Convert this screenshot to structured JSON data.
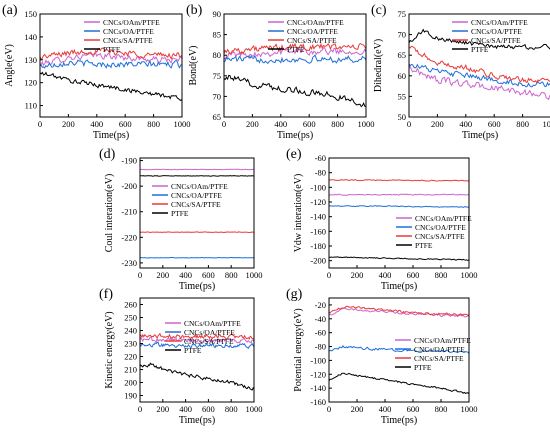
{
  "figure": {
    "panels": [
      {
        "letter": "(a)",
        "xlabel": "Time(ps)",
        "ylabel": "Angle(eV)"
      },
      {
        "letter": "(b)",
        "xlabel": "Time(ps)",
        "ylabel": "Bond(eV)"
      },
      {
        "letter": "(c)",
        "xlabel": "Time(ps)",
        "ylabel": "Dihedral(eV)"
      },
      {
        "letter": "(d)",
        "xlabel": "Time(ps)",
        "ylabel": "Coul interation(eV)"
      },
      {
        "letter": "(e)",
        "xlabel": "Time(ps)",
        "ylabel": "Vdw interation(eV)"
      },
      {
        "letter": "(f)",
        "xlabel": "Time(ps)",
        "ylabel": "Kinetic energy(eV)"
      },
      {
        "letter": "(g)",
        "xlabel": "Time(ps)",
        "ylabel": "Potential energy(eV)"
      }
    ]
  },
  "chart_data": [
    {
      "type": "line",
      "xlabel": "Time(ps)",
      "ylabel": "Angle(eV)",
      "xlim": [
        0,
        1000
      ],
      "ylim": [
        105,
        150
      ],
      "xticks": [
        0,
        200,
        400,
        600,
        800,
        1000
      ],
      "yticks": [
        110,
        120,
        130,
        140,
        150
      ],
      "legend_position": "top-right",
      "series": [
        {
          "name": "CNCs/OAm/PTFE",
          "color": "#cc66cc",
          "base": 130,
          "noise": 2.0,
          "values": [
            [
              0,
              128
            ],
            [
              200,
              131
            ],
            [
              400,
              132
            ],
            [
              600,
              131
            ],
            [
              800,
              130
            ],
            [
              1000,
              130
            ]
          ]
        },
        {
          "name": "CNCs/OA/PTFE",
          "color": "#1e6fd9",
          "base": 128,
          "noise": 2.0,
          "values": [
            [
              0,
              127
            ],
            [
              200,
              129
            ],
            [
              400,
              128
            ],
            [
              600,
              128
            ],
            [
              800,
              128
            ],
            [
              1000,
              128
            ]
          ]
        },
        {
          "name": "CNCs/SA/PTFE",
          "color": "#e83a3a",
          "base": 133,
          "noise": 2.0,
          "values": [
            [
              0,
              131
            ],
            [
              200,
              133
            ],
            [
              400,
              134
            ],
            [
              600,
              133
            ],
            [
              800,
              132
            ],
            [
              1000,
              132
            ]
          ]
        },
        {
          "name": "PTFE",
          "color": "#000000",
          "base": 120,
          "noise": 1.5,
          "values": [
            [
              0,
              124
            ],
            [
              100,
              123
            ],
            [
              200,
              121
            ],
            [
              400,
              119
            ],
            [
              600,
              117
            ],
            [
              800,
              115
            ],
            [
              1000,
              113
            ]
          ]
        }
      ]
    },
    {
      "type": "line",
      "xlabel": "Time(ps)",
      "ylabel": "Bond(eV)",
      "xlim": [
        0,
        1000
      ],
      "ylim": [
        65,
        90
      ],
      "xticks": [
        0,
        200,
        400,
        600,
        800,
        1000
      ],
      "yticks": [
        65,
        70,
        75,
        80,
        85,
        90
      ],
      "legend_position": "top-right",
      "series": [
        {
          "name": "CNCs/OAm/PTFE",
          "color": "#cc66cc",
          "base": 81,
          "noise": 1.2,
          "values": [
            [
              0,
              80
            ],
            [
              500,
              81
            ],
            [
              1000,
              81
            ]
          ]
        },
        {
          "name": "CNCs/OA/PTFE",
          "color": "#1e6fd9",
          "base": 79,
          "noise": 1.2,
          "values": [
            [
              0,
              79
            ],
            [
              500,
              79
            ],
            [
              1000,
              79
            ]
          ]
        },
        {
          "name": "CNCs/SA/PTFE",
          "color": "#e83a3a",
          "base": 82,
          "noise": 1.2,
          "values": [
            [
              0,
              81
            ],
            [
              500,
              82
            ],
            [
              1000,
              82
            ]
          ]
        },
        {
          "name": "PTFE",
          "color": "#000000",
          "base": 72,
          "noise": 1.2,
          "values": [
            [
              0,
              75
            ],
            [
              200,
              73
            ],
            [
              400,
              72
            ],
            [
              600,
              71
            ],
            [
              800,
              70
            ],
            [
              1000,
              68
            ]
          ]
        }
      ]
    },
    {
      "type": "line",
      "xlabel": "Time(ps)",
      "ylabel": "Dihedral(eV)",
      "xlim": [
        0,
        1000
      ],
      "ylim": [
        50,
        75
      ],
      "xticks": [
        0,
        200,
        400,
        600,
        800,
        1000
      ],
      "yticks": [
        50,
        55,
        60,
        65,
        70,
        75
      ],
      "legend_position": "top-right",
      "series": [
        {
          "name": "CNCs/OAm/PTFE",
          "color": "#cc66cc",
          "base": 58,
          "noise": 1.2,
          "values": [
            [
              0,
              62
            ],
            [
              200,
              59
            ],
            [
              400,
              58
            ],
            [
              600,
              57
            ],
            [
              800,
              56
            ],
            [
              1000,
              55
            ]
          ]
        },
        {
          "name": "CNCs/OA/PTFE",
          "color": "#1e6fd9",
          "base": 60,
          "noise": 1.0,
          "values": [
            [
              0,
              63
            ],
            [
              200,
              61
            ],
            [
              400,
              60
            ],
            [
              600,
              59
            ],
            [
              800,
              58
            ],
            [
              1000,
              58
            ]
          ]
        },
        {
          "name": "CNCs/SA/PTFE",
          "color": "#e83a3a",
          "base": 62,
          "noise": 1.0,
          "values": [
            [
              0,
              67
            ],
            [
              200,
              63
            ],
            [
              400,
              62
            ],
            [
              600,
              60
            ],
            [
              800,
              59
            ],
            [
              1000,
              59
            ]
          ]
        },
        {
          "name": "PTFE",
          "color": "#000000",
          "base": 68,
          "noise": 0.8,
          "values": [
            [
              0,
              68
            ],
            [
              100,
              71
            ],
            [
              200,
              69
            ],
            [
              400,
              68
            ],
            [
              600,
              67
            ],
            [
              800,
              67
            ],
            [
              1000,
              67
            ]
          ]
        }
      ]
    },
    {
      "type": "line",
      "xlabel": "Time(ps)",
      "ylabel": "Coul interation(eV)",
      "xlim": [
        0,
        1000
      ],
      "ylim": [
        -232,
        -189
      ],
      "xticks": [
        0,
        200,
        400,
        600,
        800,
        1000
      ],
      "yticks": [
        -230,
        -220,
        -210,
        -200,
        -190
      ],
      "legend_position": "center-right",
      "series": [
        {
          "name": "CNCs/OAm/PTFE",
          "color": "#cc66cc",
          "base": -193.5,
          "noise": 0.15,
          "values": [
            [
              0,
              -193.5
            ],
            [
              1000,
              -193.5
            ]
          ]
        },
        {
          "name": "CNCs/OA/PTFE",
          "color": "#1e6fd9",
          "base": -228,
          "noise": 0.15,
          "values": [
            [
              0,
              -228
            ],
            [
              1000,
              -228
            ]
          ]
        },
        {
          "name": "CNCs/SA/PTFE",
          "color": "#e83a3a",
          "base": -218,
          "noise": 0.15,
          "values": [
            [
              0,
              -218
            ],
            [
              1000,
              -218
            ]
          ]
        },
        {
          "name": "PTFE",
          "color": "#000000",
          "base": -196,
          "noise": 0.15,
          "values": [
            [
              0,
              -196
            ],
            [
              1000,
              -196
            ]
          ]
        }
      ]
    },
    {
      "type": "line",
      "xlabel": "Time(ps)",
      "ylabel": "Vdw interation(eV)",
      "xlim": [
        0,
        1000
      ],
      "ylim": [
        -210,
        -60
      ],
      "xticks": [
        0,
        200,
        400,
        600,
        800,
        1000
      ],
      "yticks": [
        -200,
        -180,
        -160,
        -140,
        -120,
        -100,
        -80,
        -60
      ],
      "legend_position": "right",
      "series": [
        {
          "name": "CNCs/OAm/PTFE",
          "color": "#cc66cc",
          "base": -110,
          "noise": 1.0,
          "values": [
            [
              0,
              -110
            ],
            [
              1000,
              -110
            ]
          ]
        },
        {
          "name": "CNCs/OA/PTFE",
          "color": "#1e6fd9",
          "base": -126,
          "noise": 1.0,
          "values": [
            [
              0,
              -125
            ],
            [
              1000,
              -127
            ]
          ]
        },
        {
          "name": "CNCs/SA/PTFE",
          "color": "#e83a3a",
          "base": -90,
          "noise": 1.0,
          "values": [
            [
              0,
              -90
            ],
            [
              1000,
              -91
            ]
          ]
        },
        {
          "name": "PTFE",
          "color": "#000000",
          "base": -197,
          "noise": 1.0,
          "values": [
            [
              0,
              -195
            ],
            [
              1000,
              -199
            ]
          ]
        }
      ]
    },
    {
      "type": "line",
      "xlabel": "Time(ps)",
      "ylabel": "Kinetic energy(eV)",
      "xlim": [
        0,
        1000
      ],
      "ylim": [
        185,
        265
      ],
      "xticks": [
        0,
        200,
        400,
        600,
        800,
        1000
      ],
      "yticks": [
        190,
        200,
        210,
        220,
        230,
        240,
        250,
        260
      ],
      "legend_position": "top-right",
      "series": [
        {
          "name": "CNCs/OAm/PTFE",
          "color": "#cc66cc",
          "base": 233,
          "noise": 2.5,
          "values": [
            [
              0,
              233
            ],
            [
              1000,
              232
            ]
          ]
        },
        {
          "name": "CNCs/OA/PTFE",
          "color": "#1e6fd9",
          "base": 229,
          "noise": 2.5,
          "values": [
            [
              0,
              229
            ],
            [
              1000,
              228
            ]
          ]
        },
        {
          "name": "CNCs/SA/PTFE",
          "color": "#e83a3a",
          "base": 236,
          "noise": 2.5,
          "values": [
            [
              0,
              236
            ],
            [
              1000,
              235
            ]
          ]
        },
        {
          "name": "PTFE",
          "color": "#000000",
          "base": 205,
          "noise": 2.0,
          "values": [
            [
              0,
              212
            ],
            [
              100,
              214
            ],
            [
              200,
              210
            ],
            [
              400,
              206
            ],
            [
              600,
              203
            ],
            [
              800,
              200
            ],
            [
              1000,
              195
            ]
          ]
        }
      ]
    },
    {
      "type": "line",
      "xlabel": "Time(ps)",
      "ylabel": "Potential energy(eV)",
      "xlim": [
        0,
        1000
      ],
      "ylim": [
        -160,
        -10
      ],
      "xticks": [
        0,
        200,
        400,
        600,
        800,
        1000
      ],
      "yticks": [
        -160,
        -140,
        -120,
        -100,
        -80,
        -60,
        -40,
        -20
      ],
      "legend_position": "right",
      "series": [
        {
          "name": "CNCs/OAm/PTFE",
          "color": "#cc66cc",
          "base": -30,
          "noise": 2.5,
          "values": [
            [
              0,
              -35
            ],
            [
              100,
              -26
            ],
            [
              200,
              -27
            ],
            [
              400,
              -30
            ],
            [
              600,
              -33
            ],
            [
              800,
              -35
            ],
            [
              1000,
              -36
            ]
          ]
        },
        {
          "name": "CNCs/OA/PTFE",
          "color": "#1e6fd9",
          "base": -85,
          "noise": 2.5,
          "values": [
            [
              0,
              -88
            ],
            [
              100,
              -80
            ],
            [
              200,
              -82
            ],
            [
              400,
              -84
            ],
            [
              600,
              -86
            ],
            [
              800,
              -87
            ],
            [
              1000,
              -88
            ]
          ]
        },
        {
          "name": "CNCs/SA/PTFE",
          "color": "#e83a3a",
          "base": -28,
          "noise": 2.5,
          "values": [
            [
              0,
              -32
            ],
            [
              100,
              -23
            ],
            [
              200,
              -24
            ],
            [
              400,
              -27
            ],
            [
              600,
              -31
            ],
            [
              800,
              -33
            ],
            [
              1000,
              -34
            ]
          ]
        },
        {
          "name": "PTFE",
          "color": "#000000",
          "base": -130,
          "noise": 2.0,
          "values": [
            [
              0,
              -128
            ],
            [
              100,
              -118
            ],
            [
              200,
              -122
            ],
            [
              400,
              -128
            ],
            [
              600,
              -134
            ],
            [
              800,
              -140
            ],
            [
              1000,
              -148
            ]
          ]
        }
      ]
    }
  ]
}
